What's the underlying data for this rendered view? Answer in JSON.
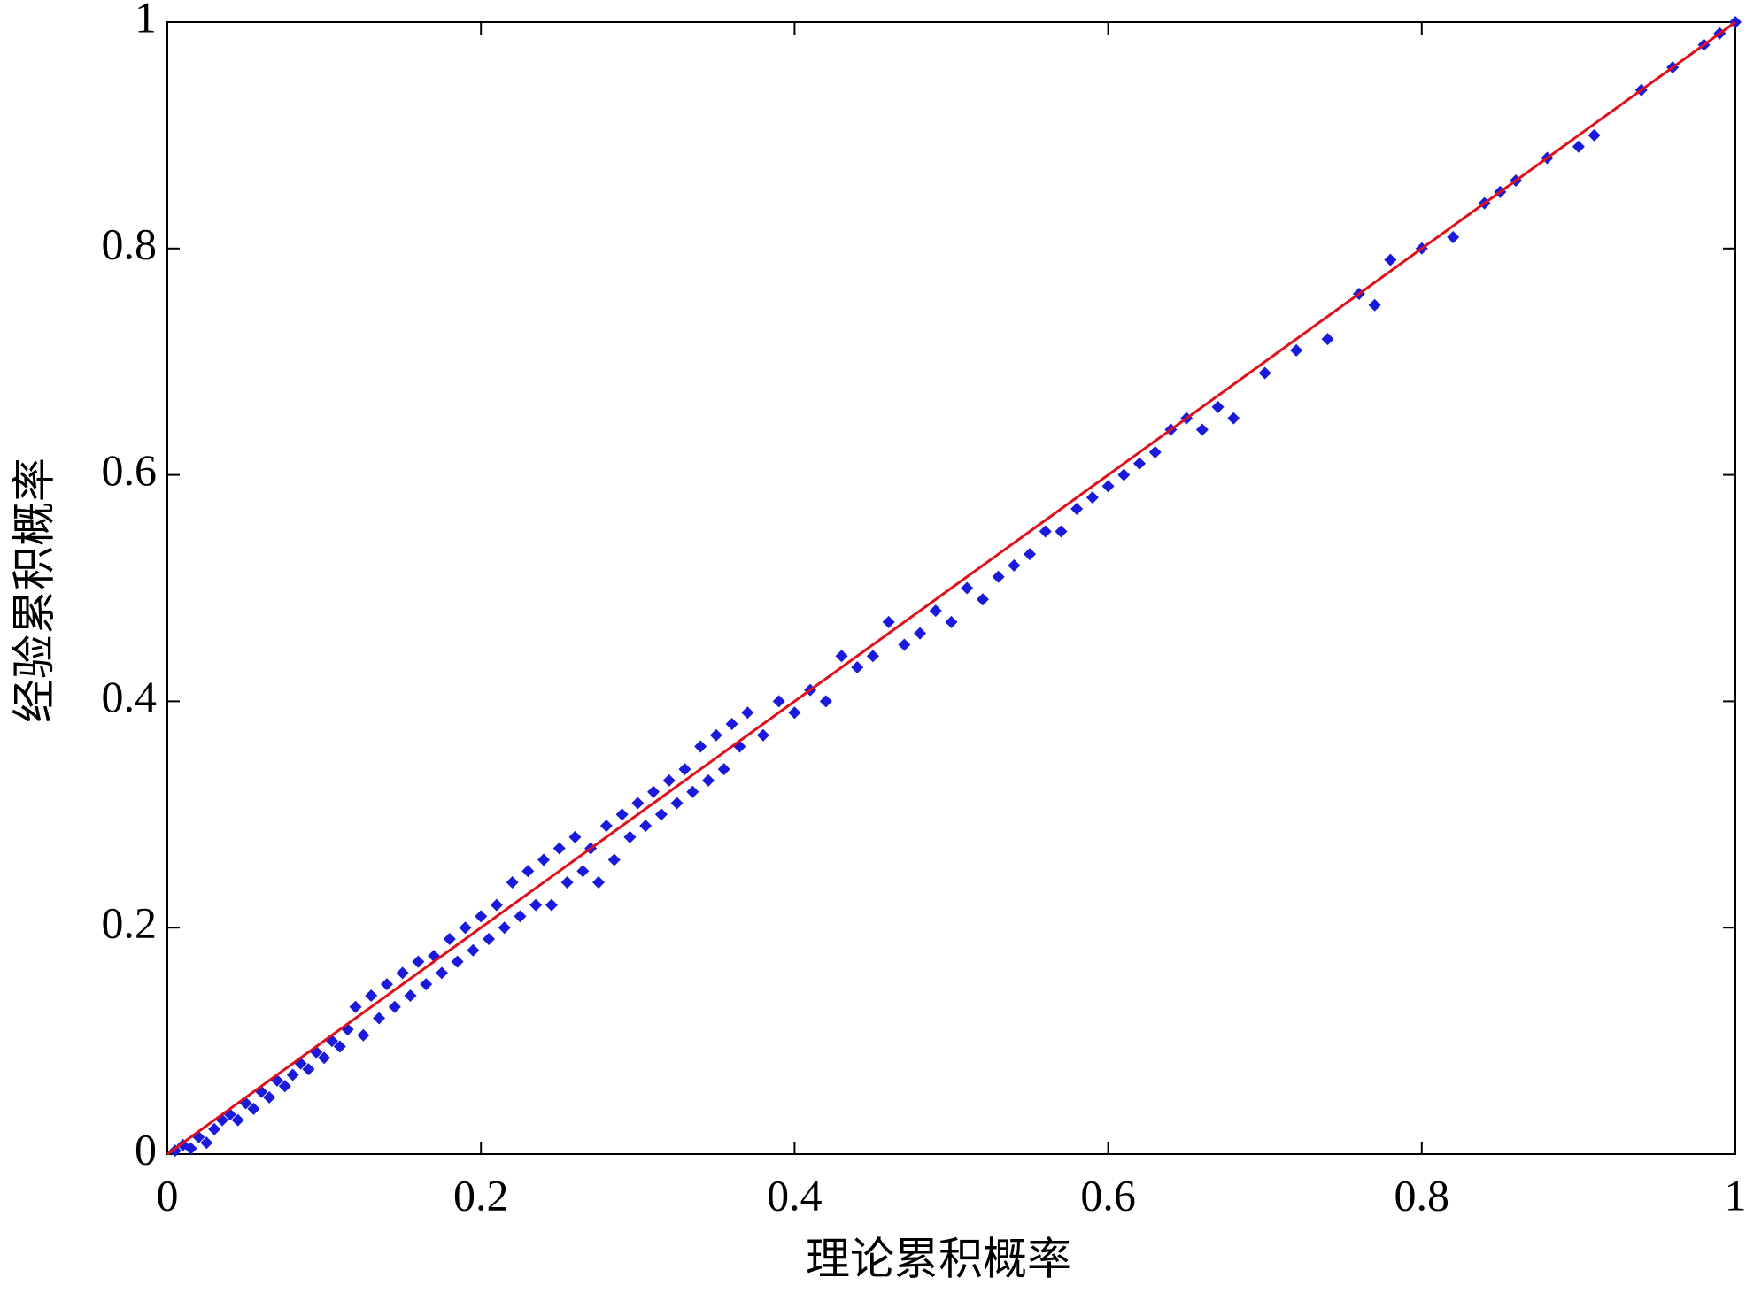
{
  "chart_data": {
    "type": "scatter",
    "x_label": "理论累积概率",
    "y_label": "经验累积概率",
    "xlim": [
      0,
      1
    ],
    "ylim": [
      0,
      1
    ],
    "xticks": [
      0,
      0.2,
      0.4,
      0.6,
      0.8,
      1
    ],
    "yticks": [
      0,
      0.2,
      0.4,
      0.6,
      0.8,
      1
    ],
    "series": [
      {
        "style": "marker",
        "color": "#1a1adc",
        "x": [
          0.005,
          0.01,
          0.015,
          0.02,
          0.025,
          0.03,
          0.035,
          0.04,
          0.045,
          0.05,
          0.055,
          0.06,
          0.065,
          0.07,
          0.075,
          0.08,
          0.085,
          0.09,
          0.095,
          0.1,
          0.105,
          0.11,
          0.115,
          0.12,
          0.125,
          0.13,
          0.135,
          0.14,
          0.145,
          0.15,
          0.155,
          0.16,
          0.165,
          0.17,
          0.175,
          0.18,
          0.185,
          0.19,
          0.195,
          0.2,
          0.205,
          0.21,
          0.215,
          0.22,
          0.225,
          0.23,
          0.235,
          0.24,
          0.245,
          0.25,
          0.255,
          0.26,
          0.265,
          0.27,
          0.275,
          0.28,
          0.285,
          0.29,
          0.295,
          0.3,
          0.305,
          0.31,
          0.315,
          0.32,
          0.325,
          0.33,
          0.335,
          0.34,
          0.345,
          0.35,
          0.355,
          0.36,
          0.365,
          0.37,
          0.38,
          0.39,
          0.4,
          0.41,
          0.42,
          0.43,
          0.44,
          0.45,
          0.46,
          0.47,
          0.48,
          0.49,
          0.5,
          0.51,
          0.52,
          0.53,
          0.54,
          0.55,
          0.56,
          0.57,
          0.58,
          0.59,
          0.6,
          0.61,
          0.62,
          0.63,
          0.64,
          0.65,
          0.66,
          0.67,
          0.68,
          0.7,
          0.72,
          0.74,
          0.76,
          0.77,
          0.78,
          0.8,
          0.82,
          0.84,
          0.85,
          0.86,
          0.88,
          0.9,
          0.91,
          0.94,
          0.96,
          0.98,
          0.99,
          1
        ],
        "values": [
          0.003,
          0.008,
          0.005,
          0.015,
          0.01,
          0.022,
          0.03,
          0.035,
          0.03,
          0.045,
          0.04,
          0.055,
          0.05,
          0.065,
          0.06,
          0.07,
          0.08,
          0.075,
          0.09,
          0.085,
          0.1,
          0.095,
          0.11,
          0.13,
          0.105,
          0.14,
          0.12,
          0.15,
          0.13,
          0.16,
          0.14,
          0.17,
          0.15,
          0.175,
          0.16,
          0.19,
          0.17,
          0.2,
          0.18,
          0.21,
          0.19,
          0.22,
          0.2,
          0.24,
          0.21,
          0.25,
          0.22,
          0.26,
          0.22,
          0.27,
          0.24,
          0.28,
          0.25,
          0.27,
          0.24,
          0.29,
          0.26,
          0.3,
          0.28,
          0.31,
          0.29,
          0.32,
          0.3,
          0.33,
          0.31,
          0.34,
          0.32,
          0.36,
          0.33,
          0.37,
          0.34,
          0.38,
          0.36,
          0.39,
          0.37,
          0.4,
          0.39,
          0.41,
          0.4,
          0.44,
          0.43,
          0.44,
          0.47,
          0.45,
          0.46,
          0.48,
          0.47,
          0.5,
          0.49,
          0.51,
          0.52,
          0.53,
          0.55,
          0.55,
          0.57,
          0.58,
          0.59,
          0.6,
          0.61,
          0.62,
          0.64,
          0.65,
          0.64,
          0.66,
          0.65,
          0.69,
          0.71,
          0.72,
          0.76,
          0.75,
          0.79,
          0.8,
          0.81,
          0.84,
          0.85,
          0.86,
          0.88,
          0.89,
          0.9,
          0.94,
          0.96,
          0.98,
          0.99,
          1
        ]
      },
      {
        "style": "line",
        "color": "#e0101a",
        "x": [
          0,
          1
        ],
        "values": [
          0,
          1
        ]
      }
    ]
  }
}
